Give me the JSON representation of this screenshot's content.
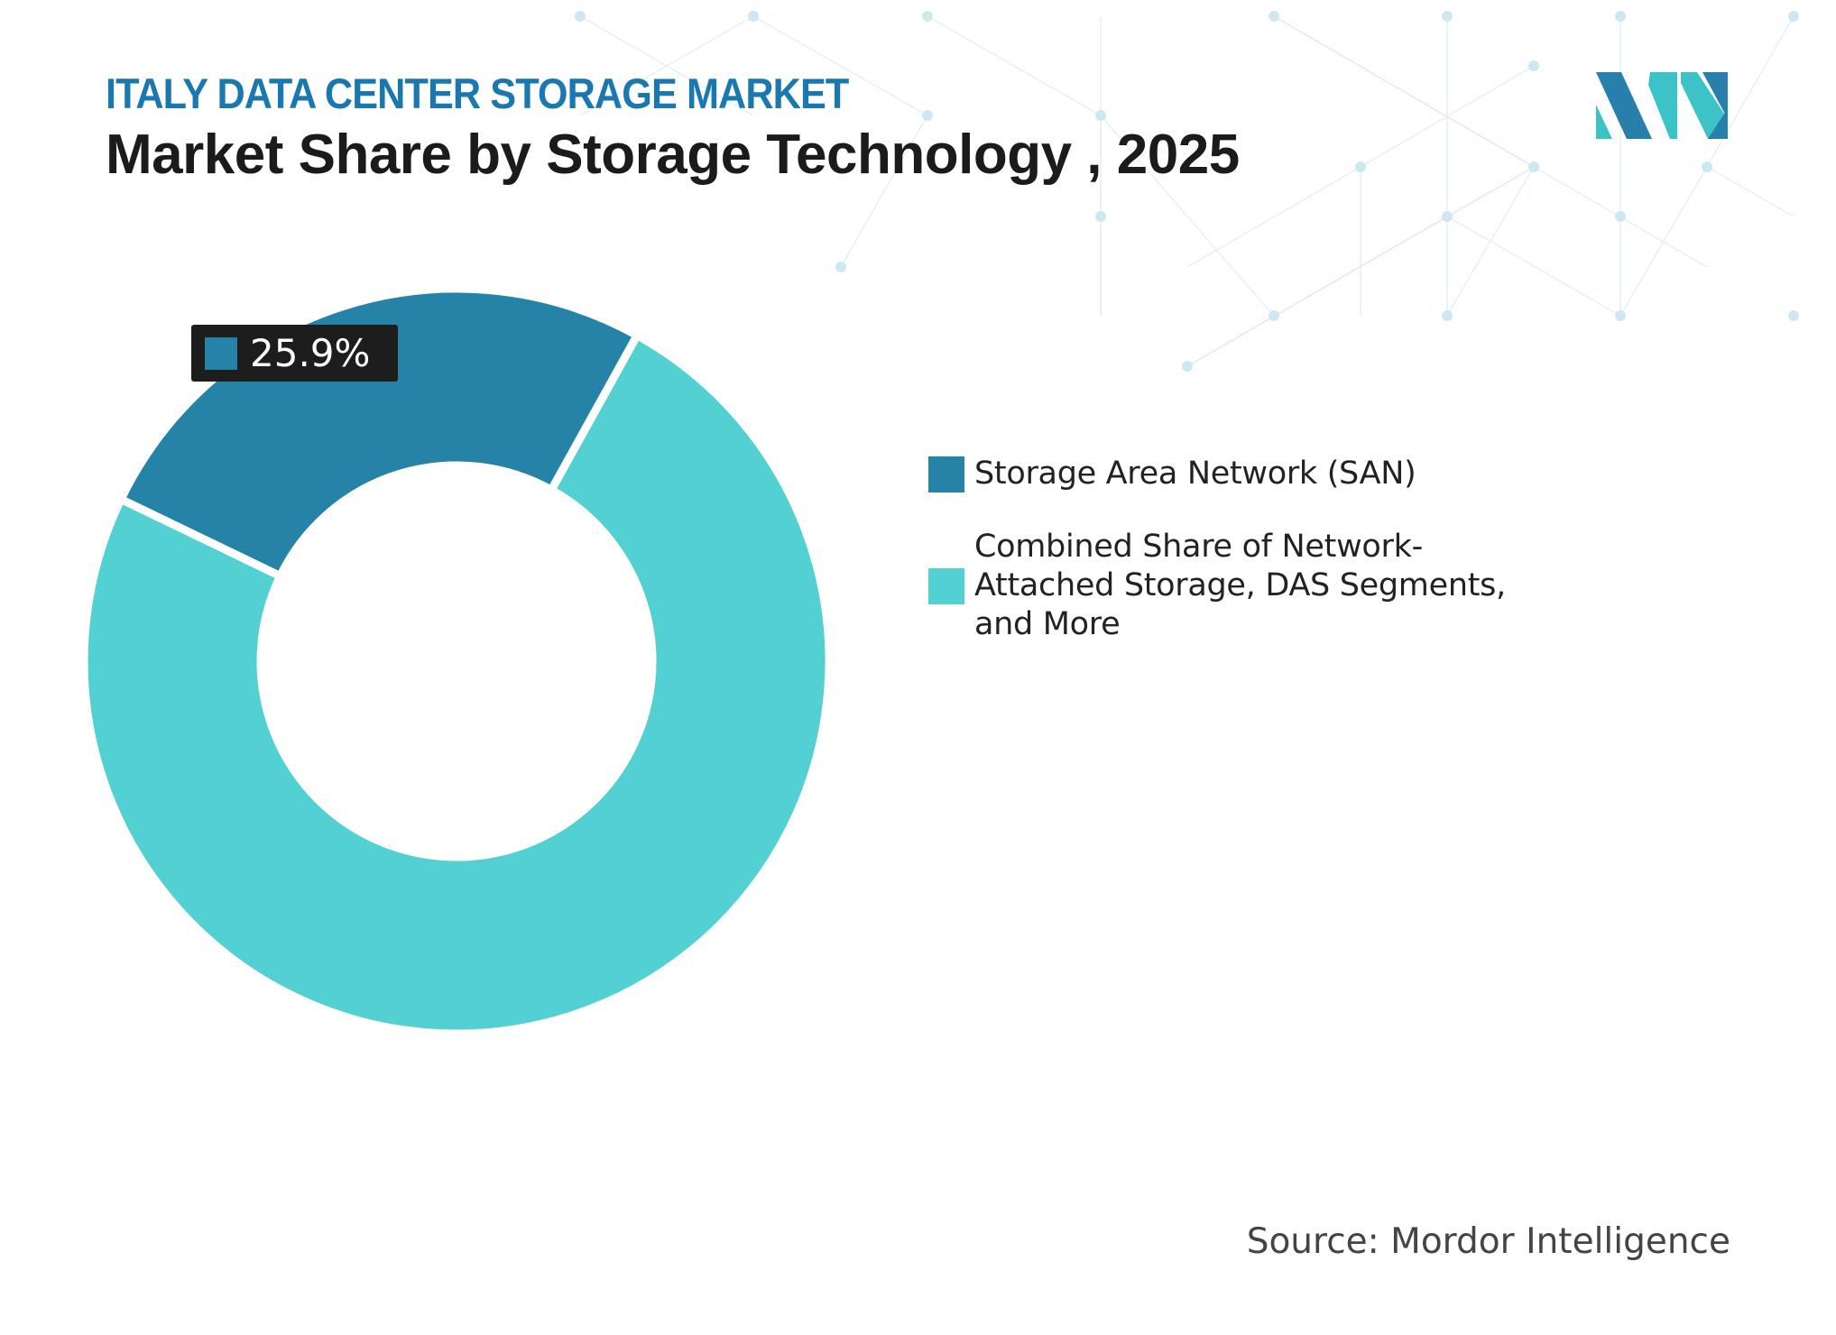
{
  "header": {
    "kicker": "ITALY DATA CENTER STORAGE MARKET",
    "title": "Market Share by Storage Technology , 2025"
  },
  "logo": {
    "brand_colors": [
      "#2680ab",
      "#3cc3c8"
    ]
  },
  "chart_data": {
    "type": "pie",
    "variant": "donut",
    "categories": [
      "Storage Area Network (SAN)",
      "Combined Share of Network-Attached Storage, DAS Segments, and More"
    ],
    "values": [
      25.9,
      74.1
    ],
    "colors": [
      "#2683a8",
      "#52d0d2"
    ],
    "data_labels": [
      {
        "category": "Storage Area Network (SAN)",
        "text": "25.9%"
      }
    ],
    "legend_position": "right"
  },
  "legend": {
    "items": [
      {
        "label": "Storage Area Network (SAN)",
        "color": "#2683a8"
      },
      {
        "label": "Combined Share of Network-Attached Storage, DAS Segments, and More",
        "color": "#52d0d2"
      }
    ]
  },
  "source": "Source: Mordor Intelligence"
}
